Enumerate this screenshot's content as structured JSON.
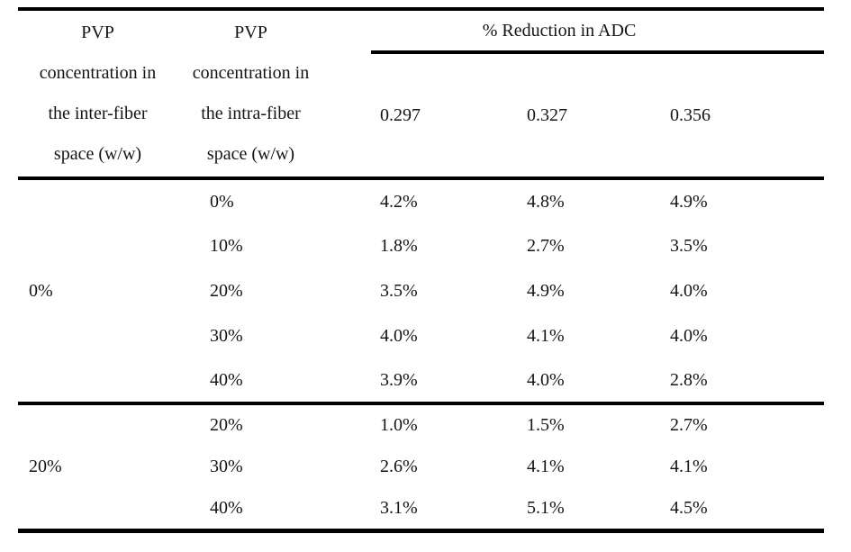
{
  "table": {
    "headers": {
      "col1_lines": [
        "PVP",
        "concentration in",
        "the inter-fiber",
        "space (w/w)"
      ],
      "col2_lines": [
        "PVP",
        "concentration in",
        "the intra-fiber",
        "space (w/w)"
      ],
      "spanner": "% Reduction in ADC",
      "sub_columns": [
        "0.297",
        "0.327",
        "0.356"
      ]
    },
    "groups": [
      {
        "inter_fiber": "0%",
        "rows": [
          {
            "intra_fiber": "0%",
            "values": [
              "4.2%",
              "4.8%",
              "4.9%"
            ]
          },
          {
            "intra_fiber": "10%",
            "values": [
              "1.8%",
              "2.7%",
              "3.5%"
            ]
          },
          {
            "intra_fiber": "20%",
            "values": [
              "3.5%",
              "4.9%",
              "4.0%"
            ]
          },
          {
            "intra_fiber": "30%",
            "values": [
              "4.0%",
              "4.1%",
              "4.0%"
            ]
          },
          {
            "intra_fiber": "40%",
            "values": [
              "3.9%",
              "4.0%",
              "2.8%"
            ]
          }
        ]
      },
      {
        "inter_fiber": "20%",
        "rows": [
          {
            "intra_fiber": "20%",
            "values": [
              "1.0%",
              "1.5%",
              "2.7%"
            ]
          },
          {
            "intra_fiber": "30%",
            "values": [
              "2.6%",
              "4.1%",
              "4.1%"
            ]
          },
          {
            "intra_fiber": "40%",
            "values": [
              "3.1%",
              "5.1%",
              "4.5%"
            ]
          }
        ]
      }
    ]
  },
  "chart_data": {
    "type": "table",
    "title": "% Reduction in ADC",
    "column_headers": [
      "PVP concentration in the inter-fiber space (w/w)",
      "PVP concentration in the intra-fiber space (w/w)",
      "0.297",
      "0.327",
      "0.356"
    ],
    "rows": [
      [
        "0%",
        "0%",
        "4.2%",
        "4.8%",
        "4.9%"
      ],
      [
        "0%",
        "10%",
        "1.8%",
        "2.7%",
        "3.5%"
      ],
      [
        "0%",
        "20%",
        "3.5%",
        "4.9%",
        "4.0%"
      ],
      [
        "0%",
        "30%",
        "4.0%",
        "4.1%",
        "4.0%"
      ],
      [
        "0%",
        "40%",
        "3.9%",
        "4.0%",
        "2.8%"
      ],
      [
        "20%",
        "20%",
        "1.0%",
        "1.5%",
        "2.7%"
      ],
      [
        "20%",
        "30%",
        "2.6%",
        "4.1%",
        "4.1%"
      ],
      [
        "20%",
        "40%",
        "3.1%",
        "5.1%",
        "4.5%"
      ]
    ]
  }
}
